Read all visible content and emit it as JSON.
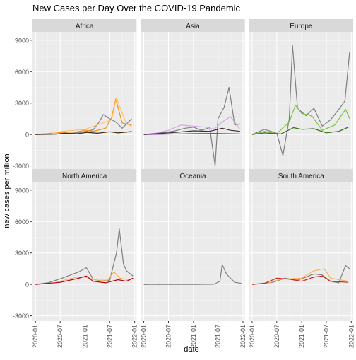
{
  "chart_data": {
    "type": "line",
    "title": "New Cases per Day Over the COVID-19 Pandemic",
    "xlabel": "date",
    "ylabel": "new cases per million",
    "ylim": [
      -3500,
      9800
    ],
    "xlim": [
      "2019-12-10",
      "2022-01-15"
    ],
    "y_ticks": [
      -3000,
      0,
      3000,
      6000,
      9000
    ],
    "y_tick_labels": [
      "-3000",
      "0",
      "3000",
      "6000",
      "9000"
    ],
    "x_ticks": [
      "2020-01-01",
      "2020-07-01",
      "2021-01-01",
      "2021-07-01",
      "2022-01-01"
    ],
    "x_tick_labels": [
      "2020-01",
      "2020-07",
      "2021-01",
      "2021-07",
      "2022-01"
    ],
    "grid": true,
    "legend": "none",
    "facet_layout": {
      "rows": 2,
      "cols": 3
    },
    "panel_background": "#ebebeb",
    "strip_background": "#d9d9d9",
    "panels": [
      {
        "name": "Africa",
        "series": [
          {
            "color": "#7f7f7f",
            "points": [
              [
                "2020-01-01",
                0
              ],
              [
                "2020-04-01",
                15
              ],
              [
                "2020-07-01",
                60
              ],
              [
                "2020-10-01",
                120
              ],
              [
                "2021-01-01",
                280
              ],
              [
                "2021-03-01",
                450
              ],
              [
                "2021-04-15",
                1200
              ],
              [
                "2021-05-15",
                1900
              ],
              [
                "2021-07-01",
                1500
              ],
              [
                "2021-08-15",
                1200
              ],
              [
                "2021-10-01",
                600
              ],
              [
                "2021-12-10",
                1500
              ]
            ]
          },
          {
            "color": "#ff8c00",
            "points": [
              [
                "2020-01-01",
                0
              ],
              [
                "2020-06-01",
                150
              ],
              [
                "2020-08-01",
                220
              ],
              [
                "2020-11-01",
                250
              ],
              [
                "2021-01-01",
                420
              ],
              [
                "2021-03-01",
                300
              ],
              [
                "2021-06-01",
                600
              ],
              [
                "2021-07-15",
                1600
              ],
              [
                "2021-08-15",
                3400
              ],
              [
                "2021-10-01",
                1100
              ],
              [
                "2021-12-10",
                900
              ]
            ]
          },
          {
            "color": "#ffc170",
            "points": [
              [
                "2020-05-01",
                100
              ],
              [
                "2020-07-15",
                300
              ],
              [
                "2021-01-01",
                500
              ],
              [
                "2021-07-15",
                1400
              ],
              [
                "2021-08-20",
                3500
              ],
              [
                "2021-11-01",
                1000
              ],
              [
                "2021-12-10",
                800
              ]
            ]
          },
          {
            "color": "#3d2a10",
            "points": [
              [
                "2020-01-01",
                0
              ],
              [
                "2020-06-01",
                30
              ],
              [
                "2020-08-01",
                130
              ],
              [
                "2020-11-01",
                70
              ],
              [
                "2021-01-15",
                200
              ],
              [
                "2021-04-01",
                120
              ],
              [
                "2021-07-01",
                260
              ],
              [
                "2021-09-01",
                150
              ],
              [
                "2021-12-10",
                280
              ]
            ]
          }
        ]
      },
      {
        "name": "Asia",
        "series": [
          {
            "color": "#7f7f7f",
            "points": [
              [
                "2020-01-01",
                0
              ],
              [
                "2020-05-01",
                150
              ],
              [
                "2020-08-01",
                300
              ],
              [
                "2020-11-01",
                600
              ],
              [
                "2021-01-01",
                700
              ],
              [
                "2021-03-01",
                400
              ],
              [
                "2021-05-01",
                650
              ],
              [
                "2021-06-10",
                -3000
              ],
              [
                "2021-07-01",
                1500
              ],
              [
                "2021-08-15",
                2600
              ],
              [
                "2021-09-20",
                4500
              ],
              [
                "2021-11-01",
                900
              ],
              [
                "2021-12-10",
                1000
              ]
            ]
          },
          {
            "color": "#cfa8e0",
            "points": [
              [
                "2020-03-01",
                50
              ],
              [
                "2020-07-01",
                400
              ],
              [
                "2020-10-01",
                900
              ],
              [
                "2021-01-01",
                800
              ],
              [
                "2021-04-01",
                700
              ],
              [
                "2021-06-01",
                500
              ],
              [
                "2021-08-01",
                1200
              ],
              [
                "2021-10-01",
                1700
              ],
              [
                "2021-12-10",
                500
              ]
            ]
          },
          {
            "color": "#7a2c99",
            "points": [
              [
                "2020-01-01",
                0
              ],
              [
                "2020-06-01",
                30
              ],
              [
                "2021-01-01",
                80
              ],
              [
                "2021-06-01",
                100
              ],
              [
                "2021-12-10",
                60
              ]
            ]
          },
          {
            "color": "#3d2a3d",
            "points": [
              [
                "2020-01-01",
                0
              ],
              [
                "2020-08-01",
                180
              ],
              [
                "2021-01-01",
                350
              ],
              [
                "2021-05-01",
                300
              ],
              [
                "2021-08-01",
                600
              ],
              [
                "2021-10-01",
                400
              ],
              [
                "2021-12-10",
                300
              ]
            ]
          }
        ]
      },
      {
        "name": "Europe",
        "series": [
          {
            "color": "#7f7f7f",
            "points": [
              [
                "2020-01-01",
                0
              ],
              [
                "2020-04-01",
                500
              ],
              [
                "2020-07-01",
                120
              ],
              [
                "2020-08-15",
                -2000
              ],
              [
                "2020-10-01",
                1500
              ],
              [
                "2020-10-25",
                8500
              ],
              [
                "2020-12-01",
                2500
              ],
              [
                "2021-02-01",
                1800
              ],
              [
                "2021-04-01",
                2500
              ],
              [
                "2021-06-01",
                800
              ],
              [
                "2021-08-01",
                1400
              ],
              [
                "2021-10-01",
                2400
              ],
              [
                "2021-11-15",
                3200
              ],
              [
                "2021-12-20",
                7900
              ]
            ]
          },
          {
            "color": "#7cc242",
            "points": [
              [
                "2020-01-01",
                0
              ],
              [
                "2020-04-01",
                300
              ],
              [
                "2020-07-01",
                80
              ],
              [
                "2020-10-01",
                1200
              ],
              [
                "2020-11-15",
                2800
              ],
              [
                "2021-01-01",
                2000
              ],
              [
                "2021-03-15",
                1800
              ],
              [
                "2021-06-01",
                400
              ],
              [
                "2021-09-01",
                900
              ],
              [
                "2021-11-20",
                2400
              ],
              [
                "2021-12-20",
                1500
              ]
            ]
          },
          {
            "color": "#2d6e12",
            "points": [
              [
                "2020-01-01",
                0
              ],
              [
                "2020-04-01",
                150
              ],
              [
                "2020-08-01",
                60
              ],
              [
                "2020-11-01",
                650
              ],
              [
                "2021-01-01",
                500
              ],
              [
                "2021-04-01",
                550
              ],
              [
                "2021-07-01",
                160
              ],
              [
                "2021-10-01",
                300
              ],
              [
                "2021-12-10",
                700
              ]
            ]
          }
        ]
      },
      {
        "name": "North America",
        "series": [
          {
            "color": "#7f7f7f",
            "points": [
              [
                "2020-01-01",
                0
              ],
              [
                "2020-04-01",
                150
              ],
              [
                "2020-07-15",
                600
              ],
              [
                "2020-11-15",
                1200
              ],
              [
                "2021-01-10",
                1600
              ],
              [
                "2021-03-01",
                500
              ],
              [
                "2021-05-01",
                300
              ],
              [
                "2021-07-01",
                400
              ],
              [
                "2021-08-20",
                3000
              ],
              [
                "2021-09-10",
                5300
              ],
              [
                "2021-10-10",
                2000
              ],
              [
                "2021-11-01",
                1300
              ],
              [
                "2021-12-20",
                800
              ]
            ]
          },
          {
            "color": "#ffb055",
            "points": [
              [
                "2020-06-01",
                200
              ],
              [
                "2020-11-01",
                700
              ],
              [
                "2021-01-01",
                700
              ],
              [
                "2021-04-01",
                400
              ],
              [
                "2021-06-15",
                400
              ],
              [
                "2021-08-01",
                1200
              ],
              [
                "2021-09-15",
                600
              ],
              [
                "2021-12-10",
                400
              ]
            ]
          },
          {
            "color": "#b50015",
            "points": [
              [
                "2020-01-01",
                0
              ],
              [
                "2020-04-01",
                100
              ],
              [
                "2020-07-01",
                200
              ],
              [
                "2020-11-01",
                550
              ],
              [
                "2021-01-10",
                800
              ],
              [
                "2021-03-01",
                300
              ],
              [
                "2021-06-01",
                150
              ],
              [
                "2021-09-01",
                450
              ],
              [
                "2021-11-01",
                300
              ],
              [
                "2021-12-20",
                600
              ]
            ]
          }
        ]
      },
      {
        "name": "Oceania",
        "series": [
          {
            "color": "#2338b0",
            "points": [
              [
                "2020-01-01",
                0
              ],
              [
                "2020-03-15",
                40
              ],
              [
                "2020-05-01",
                0
              ]
            ]
          },
          {
            "color": "#7f7f7f",
            "points": [
              [
                "2020-01-01",
                0
              ],
              [
                "2021-01-01",
                5
              ],
              [
                "2021-06-01",
                15
              ],
              [
                "2021-07-15",
                300
              ],
              [
                "2021-08-01",
                1900
              ],
              [
                "2021-09-01",
                1000
              ],
              [
                "2021-10-01",
                600
              ],
              [
                "2021-11-01",
                200
              ],
              [
                "2021-12-20",
                100
              ]
            ]
          }
        ]
      },
      {
        "name": "South America",
        "series": [
          {
            "color": "#7f7f7f",
            "points": [
              [
                "2020-01-01",
                0
              ],
              [
                "2020-06-01",
                200
              ],
              [
                "2020-09-01",
                600
              ],
              [
                "2020-12-01",
                400
              ],
              [
                "2021-02-01",
                700
              ],
              [
                "2021-04-01",
                1000
              ],
              [
                "2021-06-01",
                900
              ],
              [
                "2021-08-01",
                300
              ],
              [
                "2021-10-01",
                150
              ],
              [
                "2021-11-20",
                1800
              ],
              [
                "2021-12-20",
                1500
              ]
            ]
          },
          {
            "color": "#ffb055",
            "points": [
              [
                "2020-05-01",
                150
              ],
              [
                "2020-08-01",
                500
              ],
              [
                "2021-01-01",
                600
              ],
              [
                "2021-04-01",
                1300
              ],
              [
                "2021-06-15",
                1500
              ],
              [
                "2021-08-01",
                600
              ],
              [
                "2021-12-10",
                300
              ]
            ]
          },
          {
            "color": "#cc2222",
            "points": [
              [
                "2020-01-01",
                0
              ],
              [
                "2020-04-01",
                100
              ],
              [
                "2020-07-01",
                600
              ],
              [
                "2020-10-01",
                500
              ],
              [
                "2021-01-01",
                300
              ],
              [
                "2021-04-01",
                700
              ],
              [
                "2021-06-01",
                800
              ],
              [
                "2021-08-01",
                300
              ],
              [
                "2021-12-10",
                200
              ]
            ]
          }
        ]
      }
    ]
  }
}
